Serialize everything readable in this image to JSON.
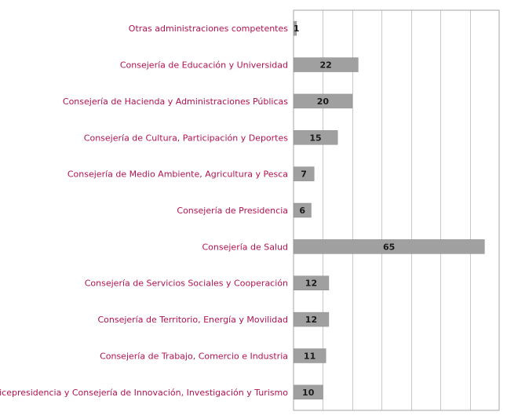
{
  "chart_data": {
    "type": "bar",
    "orientation": "horizontal",
    "categories": [
      "Otras administraciones competentes",
      "Consejería de Educación y Universidad",
      "Consejería de Hacienda y Administraciones Públicas",
      "Consejería de Cultura, Participación y Deportes",
      "Consejería de Medio Ambiente, Agricultura y Pesca",
      "Consejería de Presidencia",
      "Consejería de Salud",
      "Consejería de Servicios Sociales y Cooperación",
      "Consejería de Territorio, Energía y Movilidad",
      "Consejería de Trabajo, Comercio e Industria",
      "Vicepresidencia y Consejería de Innovación, Investigación y Turismo"
    ],
    "values": [
      1,
      22,
      20,
      15,
      7,
      6,
      65,
      12,
      12,
      11,
      10
    ],
    "xlim": [
      0,
      70
    ],
    "grid": true,
    "data_labels": true,
    "colors": {
      "bar": "#a0a0a0",
      "bar_edge": "#8a8a8a",
      "category_text": "#b0124f",
      "grid": "#c8c8c8",
      "frame": "#a6a6a6"
    }
  }
}
